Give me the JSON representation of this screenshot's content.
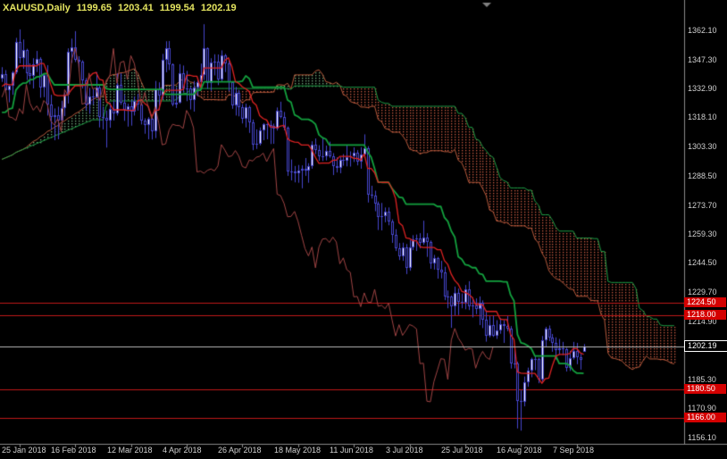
{
  "header": {
    "symbol": "XAUUSD,Daily",
    "open": "1199.65",
    "high": "1203.41",
    "low": "1199.54",
    "close": "1202.19"
  },
  "y_axis": {
    "ticks": [
      "1362.10",
      "1347.30",
      "1332.90",
      "1318.10",
      "1303.30",
      "1288.50",
      "1273.70",
      "1259.30",
      "1244.50",
      "1229.70",
      "1214.90",
      "1185.30",
      "1170.90",
      "1156.10"
    ]
  },
  "x_axis": {
    "labels": [
      {
        "text": "25 Jan 2018",
        "bar": 33
      },
      {
        "text": "16 Feb 2018",
        "bar": 49
      },
      {
        "text": "12 Mar 2018",
        "bar": 65
      },
      {
        "text": "4 Apr 2018",
        "bar": 81
      },
      {
        "text": "26 Apr 2018",
        "bar": 97
      },
      {
        "text": "18 May 2018",
        "bar": 113
      },
      {
        "text": "11 Jun 2018",
        "bar": 129
      },
      {
        "text": "3 Jul 2018",
        "bar": 145
      },
      {
        "text": "25 Jul 2018",
        "bar": 161
      },
      {
        "text": "16 Aug 2018",
        "bar": 177
      },
      {
        "text": "7 Sep 2018",
        "bar": 193
      }
    ]
  },
  "levels": [
    {
      "label": "1224.50",
      "price": 1224.5
    },
    {
      "label": "1218.00",
      "price": 1218.0
    },
    {
      "label": "1180.50",
      "price": 1180.5
    },
    {
      "label": "1166.00",
      "price": 1166.0
    }
  ],
  "current_price": {
    "label": "1202.19",
    "price": 1202.19
  },
  "colors": {
    "background": "#000000",
    "header_text": "#e3e35f",
    "axis_text": "#cfcfcf",
    "axis_line": "#8a8a8a",
    "candle_outline": "#4646cc",
    "candle_bull": "#ffffff",
    "candle_bear": "#000000",
    "tenkan": "#dd2222",
    "kijun": "#13a03e",
    "chikou": "#a04444",
    "senkou_a": "#b85a3c",
    "senkou_b": "#1f9e46",
    "kumo_bull": "#74b282",
    "kumo_bear": "#cc5c44",
    "level_line": "#c01818",
    "level_badge": "#d40000",
    "price_line": "#b8b8b8",
    "shift_marker": "#808080"
  },
  "chart_data": {
    "type": "candlestick",
    "symbol": "XAUUSD",
    "timeframe": "Daily",
    "title": "XAUUSD,Daily",
    "ylim": [
      1156.1,
      1362.1
    ],
    "grid": false,
    "indicator": {
      "name": "Ichimoku Kinko Hyo",
      "tenkan_sen": 9,
      "kijun_sen": 26,
      "senkou_span_b": 52,
      "shift": 26
    },
    "warmup_bars": 30,
    "ohlc": [
      [
        1295.0,
        1298.5,
        1290.2,
        1293.5
      ],
      [
        1293.5,
        1299.0,
        1291.6,
        1297.5
      ],
      [
        1297.5,
        1303.5,
        1295.0,
        1302.0
      ],
      [
        1302.0,
        1305.0,
        1297.6,
        1299.5
      ],
      [
        1299.5,
        1306.5,
        1298.0,
        1305.5
      ],
      [
        1305.5,
        1308.0,
        1301.1,
        1303.5
      ],
      [
        1303.5,
        1310.5,
        1302.0,
        1309.5
      ],
      [
        1309.5,
        1312.0,
        1305.6,
        1307.0
      ],
      [
        1307.0,
        1313.5,
        1305.5,
        1312.5
      ],
      [
        1312.5,
        1315.0,
        1308.1,
        1310.0
      ],
      [
        1310.0,
        1316.5,
        1308.5,
        1315.5
      ],
      [
        1315.5,
        1318.0,
        1311.6,
        1313.5
      ],
      [
        1313.5,
        1319.5,
        1312.0,
        1318.5
      ],
      [
        1318.5,
        1321.0,
        1314.6,
        1316.5
      ],
      [
        1316.5,
        1322.5,
        1315.0,
        1321.5
      ],
      [
        1321.5,
        1324.0,
        1317.6,
        1319.5
      ],
      [
        1319.5,
        1325.5,
        1318.0,
        1324.5
      ],
      [
        1324.5,
        1327.0,
        1320.6,
        1322.5
      ],
      [
        1322.5,
        1328.5,
        1321.0,
        1327.5
      ],
      [
        1327.5,
        1330.0,
        1323.6,
        1325.5
      ],
      [
        1325.5,
        1331.5,
        1324.0,
        1330.5
      ],
      [
        1330.5,
        1333.0,
        1326.6,
        1328.5
      ],
      [
        1328.5,
        1334.5,
        1327.0,
        1333.5
      ],
      [
        1333.5,
        1336.0,
        1329.6,
        1331.5
      ],
      [
        1331.5,
        1337.5,
        1330.0,
        1336.5
      ],
      [
        1336.5,
        1339.0,
        1332.6,
        1334.5
      ],
      [
        1334.5,
        1340.5,
        1333.0,
        1339.5
      ],
      [
        1339.5,
        1342.0,
        1335.6,
        1337.5
      ],
      [
        1337.5,
        1343.5,
        1336.0,
        1340.0
      ],
      [
        1340.0,
        1342.0,
        1330.6,
        1332.0
      ],
      [
        1331.8,
        1334.5,
        1325.7,
        1333.9
      ],
      [
        1333.9,
        1341.6,
        1329.5,
        1341.0
      ],
      [
        1341.0,
        1358.3,
        1340.0,
        1356.3
      ],
      [
        1356.3,
        1362.6,
        1345.4,
        1347.9
      ],
      [
        1347.9,
        1357.5,
        1342.6,
        1352.2
      ],
      [
        1352.2,
        1352.8,
        1337.0,
        1340.4
      ],
      [
        1340.4,
        1345.4,
        1334.8,
        1339.1
      ],
      [
        1339.1,
        1348.0,
        1332.7,
        1345.1
      ],
      [
        1345.1,
        1351.7,
        1341.0,
        1347.6
      ],
      [
        1347.6,
        1348.5,
        1328.0,
        1333.1
      ],
      [
        1333.1,
        1340.5,
        1328.3,
        1339.6
      ],
      [
        1339.6,
        1344.5,
        1319.0,
        1324.6
      ],
      [
        1324.6,
        1329.5,
        1311.9,
        1318.2
      ],
      [
        1318.2,
        1322.6,
        1306.5,
        1319.0
      ],
      [
        1319.0,
        1323.5,
        1307.0,
        1316.3
      ],
      [
        1316.3,
        1326.5,
        1314.9,
        1322.7
      ],
      [
        1322.7,
        1330.6,
        1318.7,
        1329.4
      ],
      [
        1329.4,
        1353.0,
        1325.1,
        1351.2
      ],
      [
        1351.2,
        1357.9,
        1345.7,
        1353.3
      ],
      [
        1353.3,
        1361.7,
        1346.1,
        1347.3
      ],
      [
        1347.3,
        1349.0,
        1341.5,
        1346.5
      ],
      [
        1346.5,
        1347.0,
        1332.7,
        1337.0
      ],
      [
        1337.0,
        1338.0,
        1321.6,
        1324.5
      ],
      [
        1324.5,
        1333.0,
        1319.9,
        1328.8
      ],
      [
        1328.8,
        1332.4,
        1324.5,
        1328.3
      ],
      [
        1328.3,
        1341.0,
        1328.0,
        1333.0
      ],
      [
        1333.0,
        1334.5,
        1313.0,
        1318.4
      ],
      [
        1318.4,
        1323.5,
        1312.0,
        1317.9
      ],
      [
        1317.9,
        1321.5,
        1302.8,
        1316.5
      ],
      [
        1316.5,
        1325.5,
        1312.8,
        1322.5
      ],
      [
        1322.5,
        1326.5,
        1316.5,
        1319.9
      ],
      [
        1319.9,
        1340.2,
        1319.0,
        1334.7
      ],
      [
        1334.7,
        1340.4,
        1324.4,
        1325.4
      ],
      [
        1325.4,
        1329.5,
        1316.3,
        1321.7
      ],
      [
        1321.7,
        1325.0,
        1313.4,
        1323.9
      ],
      [
        1323.9,
        1327.0,
        1313.9,
        1320.8
      ],
      [
        1320.8,
        1328.7,
        1319.0,
        1326.6
      ],
      [
        1326.6,
        1330.0,
        1321.5,
        1324.8
      ],
      [
        1324.8,
        1325.6,
        1314.5,
        1316.3
      ],
      [
        1316.3,
        1317.6,
        1309.8,
        1314.2
      ],
      [
        1314.2,
        1318.2,
        1307.0,
        1317.3
      ],
      [
        1317.3,
        1317.9,
        1306.9,
        1310.9
      ],
      [
        1310.9,
        1336.5,
        1307.6,
        1332.1
      ],
      [
        1332.1,
        1335.8,
        1321.9,
        1328.9
      ],
      [
        1328.9,
        1350.2,
        1327.2,
        1347.2
      ],
      [
        1347.2,
        1356.6,
        1340.9,
        1353.0
      ],
      [
        1353.0,
        1356.7,
        1342.0,
        1345.1
      ],
      [
        1345.1,
        1345.4,
        1323.7,
        1324.7
      ],
      [
        1324.7,
        1333.3,
        1322.8,
        1325.5
      ],
      [
        1325.5,
        1345.0,
        1325.0,
        1340.5
      ],
      [
        1340.5,
        1344.3,
        1330.7,
        1332.6
      ],
      [
        1332.6,
        1341.6,
        1326.3,
        1332.9
      ],
      [
        1332.9,
        1333.5,
        1322.1,
        1326.7
      ],
      [
        1326.7,
        1336.5,
        1321.0,
        1333.1
      ],
      [
        1333.1,
        1337.0,
        1328.8,
        1336.0
      ],
      [
        1336.0,
        1345.3,
        1332.1,
        1339.5
      ],
      [
        1339.5,
        1365.2,
        1337.0,
        1352.9
      ],
      [
        1352.9,
        1353.5,
        1332.5,
        1335.3
      ],
      [
        1335.3,
        1348.0,
        1331.5,
        1345.8
      ],
      [
        1345.8,
        1350.0,
        1339.3,
        1346.5
      ],
      [
        1346.5,
        1349.9,
        1334.4,
        1337.3
      ],
      [
        1337.3,
        1352.0,
        1336.1,
        1349.3
      ],
      [
        1349.3,
        1350.2,
        1341.0,
        1345.3
      ],
      [
        1345.3,
        1347.0,
        1331.3,
        1336.0
      ],
      [
        1336.0,
        1336.4,
        1322.4,
        1324.1
      ],
      [
        1324.1,
        1333.5,
        1319.0,
        1330.7
      ],
      [
        1330.7,
        1332.0,
        1318.6,
        1323.2
      ],
      [
        1323.2,
        1324.8,
        1315.0,
        1317.4
      ],
      [
        1317.4,
        1325.0,
        1313.0,
        1323.4
      ],
      [
        1323.4,
        1324.0,
        1310.2,
        1315.4
      ],
      [
        1315.4,
        1317.0,
        1301.5,
        1304.2
      ],
      [
        1304.2,
        1312.0,
        1302.1,
        1304.7
      ],
      [
        1304.7,
        1313.0,
        1303.9,
        1311.7
      ],
      [
        1311.7,
        1315.2,
        1306.5,
        1314.6
      ],
      [
        1314.6,
        1315.0,
        1307.0,
        1314.0
      ],
      [
        1314.0,
        1316.5,
        1304.6,
        1313.9
      ],
      [
        1313.9,
        1314.9,
        1304.7,
        1312.5
      ],
      [
        1312.5,
        1323.1,
        1311.4,
        1321.6
      ],
      [
        1321.6,
        1326.0,
        1317.6,
        1318.4
      ],
      [
        1318.4,
        1320.8,
        1311.5,
        1312.8
      ],
      [
        1312.8,
        1313.5,
        1288.5,
        1290.5
      ],
      [
        1290.5,
        1296.8,
        1286.2,
        1290.9
      ],
      [
        1290.9,
        1293.5,
        1285.2,
        1289.8
      ],
      [
        1289.8,
        1294.0,
        1285.0,
        1291.3
      ],
      [
        1291.3,
        1293.8,
        1282.2,
        1292.0
      ],
      [
        1292.0,
        1297.5,
        1288.5,
        1291.0
      ],
      [
        1291.0,
        1294.9,
        1285.0,
        1293.5
      ],
      [
        1293.5,
        1306.0,
        1292.1,
        1304.3
      ],
      [
        1304.3,
        1307.4,
        1299.5,
        1301.5
      ],
      [
        1301.5,
        1304.0,
        1296.1,
        1298.2
      ],
      [
        1298.2,
        1307.8,
        1296.0,
        1298.6
      ],
      [
        1298.6,
        1303.8,
        1296.3,
        1301.3
      ],
      [
        1301.3,
        1305.8,
        1297.6,
        1298.5
      ],
      [
        1298.5,
        1300.0,
        1288.9,
        1293.3
      ],
      [
        1293.3,
        1297.9,
        1290.2,
        1292.5
      ],
      [
        1292.5,
        1298.0,
        1289.8,
        1296.5
      ],
      [
        1296.5,
        1299.5,
        1293.6,
        1296.0
      ],
      [
        1296.0,
        1304.0,
        1293.3,
        1297.9
      ],
      [
        1297.9,
        1300.9,
        1293.2,
        1298.4
      ],
      [
        1298.4,
        1302.9,
        1295.5,
        1300.0
      ],
      [
        1300.0,
        1301.5,
        1293.8,
        1295.7
      ],
      [
        1295.7,
        1303.0,
        1292.1,
        1299.3
      ],
      [
        1299.3,
        1309.5,
        1297.5,
        1302.3
      ],
      [
        1302.3,
        1303.5,
        1275.0,
        1279.2
      ],
      [
        1279.2,
        1283.5,
        1277.0,
        1278.5
      ],
      [
        1278.5,
        1281.0,
        1270.6,
        1274.5
      ],
      [
        1274.5,
        1275.5,
        1261.1,
        1267.8
      ],
      [
        1267.8,
        1274.8,
        1260.9,
        1268.0
      ],
      [
        1268.0,
        1272.5,
        1265.0,
        1270.5
      ],
      [
        1270.5,
        1272.5,
        1263.5,
        1265.5
      ],
      [
        1265.5,
        1266.5,
        1254.6,
        1258.5
      ],
      [
        1258.5,
        1261.5,
        1250.5,
        1251.7
      ],
      [
        1251.7,
        1254.5,
        1245.9,
        1248.0
      ],
      [
        1248.0,
        1254.7,
        1245.5,
        1252.5
      ],
      [
        1252.5,
        1254.0,
        1238.8,
        1242.0
      ],
      [
        1242.0,
        1256.0,
        1240.5,
        1252.4
      ],
      [
        1252.4,
        1258.5,
        1250.9,
        1256.5
      ],
      [
        1256.5,
        1258.8,
        1250.5,
        1256.8
      ],
      [
        1256.8,
        1259.5,
        1251.8,
        1254.8
      ],
      [
        1254.8,
        1265.8,
        1253.6,
        1257.5
      ],
      [
        1257.5,
        1259.5,
        1247.5,
        1255.0
      ],
      [
        1255.0,
        1255.8,
        1241.5,
        1244.0
      ],
      [
        1244.0,
        1248.5,
        1241.1,
        1247.0
      ],
      [
        1247.0,
        1247.5,
        1236.5,
        1241.0
      ],
      [
        1241.0,
        1245.5,
        1236.6,
        1239.7
      ],
      [
        1239.7,
        1242.5,
        1225.6,
        1227.3
      ],
      [
        1227.3,
        1230.5,
        1221.5,
        1227.5
      ],
      [
        1227.5,
        1228.0,
        1211.6,
        1222.3
      ],
      [
        1222.3,
        1232.5,
        1217.9,
        1229.3
      ],
      [
        1229.3,
        1231.5,
        1218.1,
        1224.7
      ],
      [
        1224.7,
        1229.0,
        1221.5,
        1224.4
      ],
      [
        1224.4,
        1233.3,
        1221.0,
        1231.1
      ],
      [
        1231.1,
        1235.2,
        1220.6,
        1222.5
      ],
      [
        1222.5,
        1227.0,
        1216.9,
        1223.0
      ],
      [
        1223.0,
        1226.5,
        1218.5,
        1221.3
      ],
      [
        1221.3,
        1227.5,
        1213.0,
        1224.1
      ],
      [
        1224.1,
        1225.5,
        1211.5,
        1215.6
      ],
      [
        1215.6,
        1220.5,
        1204.6,
        1207.5
      ],
      [
        1207.5,
        1217.5,
        1206.8,
        1213.2
      ],
      [
        1213.2,
        1217.8,
        1207.0,
        1207.8
      ],
      [
        1207.8,
        1215.5,
        1206.0,
        1210.4
      ],
      [
        1210.4,
        1216.5,
        1208.6,
        1213.3
      ],
      [
        1213.3,
        1215.5,
        1204.0,
        1212.5
      ],
      [
        1212.5,
        1217.5,
        1209.9,
        1211.1
      ],
      [
        1211.1,
        1212.5,
        1191.0,
        1193.5
      ],
      [
        1193.5,
        1200.5,
        1191.1,
        1193.7
      ],
      [
        1193.7,
        1194.5,
        1160.7,
        1174.5
      ],
      [
        1174.5,
        1180.0,
        1159.6,
        1174.2
      ],
      [
        1174.2,
        1187.0,
        1171.9,
        1184.3
      ],
      [
        1184.3,
        1191.5,
        1181.8,
        1190.1
      ],
      [
        1190.1,
        1196.5,
        1186.6,
        1196.0
      ],
      [
        1196.0,
        1197.5,
        1190.2,
        1195.7
      ],
      [
        1195.7,
        1196.5,
        1183.6,
        1185.5
      ],
      [
        1185.5,
        1207.5,
        1184.5,
        1205.4
      ],
      [
        1205.4,
        1212.1,
        1202.0,
        1211.3
      ],
      [
        1211.3,
        1212.8,
        1204.9,
        1206.5
      ],
      [
        1206.5,
        1208.5,
        1199.5,
        1203.8
      ],
      [
        1203.8,
        1206.8,
        1195.6,
        1200.3
      ],
      [
        1200.3,
        1206.0,
        1198.0,
        1201.2
      ],
      [
        1201.2,
        1204.5,
        1197.8,
        1200.9
      ],
      [
        1200.9,
        1201.5,
        1189.5,
        1191.2
      ],
      [
        1191.2,
        1200.0,
        1189.8,
        1196.5
      ],
      [
        1196.5,
        1204.5,
        1195.5,
        1199.7
      ],
      [
        1199.7,
        1204.0,
        1193.2,
        1196.8
      ],
      [
        1196.8,
        1198.5,
        1190.5,
        1195.6
      ],
      [
        1199.65,
        1203.41,
        1199.54,
        1202.19
      ]
    ]
  }
}
